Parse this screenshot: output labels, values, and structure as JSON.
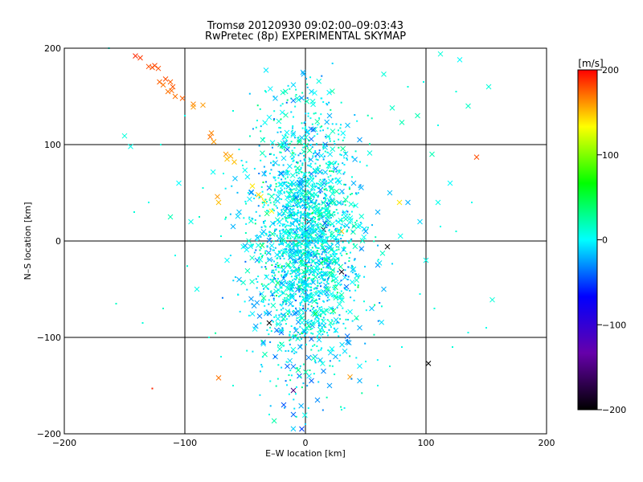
{
  "chart_data": {
    "type": "scatter",
    "title": "Tromsø 20120930 09:02:00–09:03:43",
    "subtitle": "RwPretec (8p) EXPERIMENTAL SKYMAP",
    "xlabel": "E–W location [km]",
    "ylabel": "N–S location [km]",
    "xlim": [
      -200,
      200
    ],
    "ylim": [
      -200,
      200
    ],
    "x_ticks": [
      -200,
      -100,
      0,
      100,
      200
    ],
    "y_ticks": [
      -200,
      -100,
      0,
      100,
      200
    ],
    "x_tick_labels": [
      "−200",
      "−100",
      "0",
      "100",
      "200"
    ],
    "y_tick_labels": [
      "−200",
      "−100",
      "0",
      "100",
      "200"
    ],
    "grid": true,
    "marker_types": [
      "cross",
      "dot"
    ],
    "colorbar": {
      "label": "[m/s]",
      "range": [
        -200,
        200
      ],
      "ticks": [
        200,
        100,
        0,
        -100,
        -200
      ],
      "tick_labels": [
        "200",
        "100",
        "0",
        "−100",
        "−200"
      ],
      "colors": [
        "#000000",
        "#6600aa",
        "#0000ff",
        "#00ffff",
        "#00ff00",
        "#ffff00",
        "#ff0000"
      ],
      "position": "right"
    },
    "series": [
      {
        "marker": "cross",
        "points": [
          [
            -141,
            192,
            190
          ],
          [
            -137,
            190,
            185
          ],
          [
            -130,
            181,
            180
          ],
          [
            -127,
            180,
            178
          ],
          [
            -125,
            182,
            182
          ],
          [
            -122,
            179,
            180
          ],
          [
            -121,
            165,
            175
          ],
          [
            -118,
            162,
            170
          ],
          [
            -116,
            168,
            180
          ],
          [
            -112,
            165,
            175
          ],
          [
            -114,
            155,
            170
          ],
          [
            -110,
            160,
            178
          ],
          [
            -111,
            156,
            172
          ],
          [
            -108,
            150,
            170
          ],
          [
            -102,
            148,
            175
          ],
          [
            -93,
            142,
            165
          ],
          [
            -93,
            139,
            160
          ],
          [
            -78,
            112,
            165
          ],
          [
            -79,
            108,
            170
          ],
          [
            -76,
            103,
            160
          ],
          [
            -66,
            90,
            160
          ],
          [
            -62,
            88,
            155
          ],
          [
            -65,
            85,
            150
          ],
          [
            -59,
            82,
            150
          ],
          [
            -44,
            57,
            140
          ],
          [
            -39,
            48,
            145
          ],
          [
            -37,
            46,
            140
          ],
          [
            -34,
            41,
            140
          ],
          [
            -28,
            31,
            130
          ],
          [
            -73,
            46,
            160
          ],
          [
            -72,
            40,
            150
          ],
          [
            -85,
            141,
            160
          ],
          [
            -150,
            109,
            10
          ],
          [
            -145,
            98,
            5
          ],
          [
            -112,
            25,
            20
          ],
          [
            -72,
            -142,
            170
          ],
          [
            37,
            -141,
            160
          ],
          [
            30,
            10,
            150
          ],
          [
            78,
            40,
            140
          ],
          [
            142,
            87,
            180
          ],
          [
            105,
            90,
            20
          ],
          [
            112,
            194,
            10
          ],
          [
            128,
            188,
            0
          ],
          [
            152,
            160,
            10
          ],
          [
            135,
            140,
            15
          ],
          [
            80,
            123,
            20
          ],
          [
            65,
            173,
            10
          ],
          [
            93,
            130,
            20
          ],
          [
            72,
            138,
            15
          ],
          [
            155,
            -61,
            10
          ],
          [
            45,
            -145,
            -20
          ],
          [
            102,
            -127,
            -200
          ],
          [
            68,
            -6,
            -200
          ],
          [
            30,
            -32,
            -190
          ],
          [
            -30,
            -85,
            -200
          ],
          [
            -10,
            -155,
            -150
          ],
          [
            15,
            12,
            -180
          ],
          [
            3,
            20,
            -190
          ],
          [
            -10,
            162,
            -10
          ],
          [
            -25,
            148,
            -15
          ],
          [
            -2,
            175,
            -20
          ],
          [
            5,
            155,
            -10
          ],
          [
            20,
            130,
            -20
          ],
          [
            35,
            120,
            -15
          ],
          [
            45,
            105,
            -25
          ],
          [
            -5,
            105,
            -30
          ],
          [
            -15,
            95,
            -40
          ],
          [
            10,
            90,
            -35
          ],
          [
            25,
            75,
            -30
          ],
          [
            40,
            60,
            -20
          ],
          [
            -20,
            70,
            -50
          ],
          [
            -30,
            55,
            -40
          ],
          [
            -45,
            50,
            -20
          ],
          [
            -55,
            30,
            -15
          ],
          [
            -60,
            15,
            -20
          ],
          [
            -50,
            -5,
            -25
          ],
          [
            -40,
            -20,
            -30
          ],
          [
            -55,
            -40,
            -20
          ],
          [
            -45,
            -60,
            -25
          ],
          [
            -30,
            -75,
            -30
          ],
          [
            -20,
            -95,
            -40
          ],
          [
            -35,
            -105,
            -35
          ],
          [
            -25,
            -120,
            -30
          ],
          [
            -15,
            -130,
            -40
          ],
          [
            -5,
            -140,
            -45
          ],
          [
            5,
            -145,
            -40
          ],
          [
            15,
            -135,
            -30
          ],
          [
            25,
            -120,
            -20
          ],
          [
            35,
            -105,
            -25
          ],
          [
            45,
            -90,
            -20
          ],
          [
            55,
            -70,
            -15
          ],
          [
            65,
            -50,
            -20
          ],
          [
            60,
            -25,
            -30
          ],
          [
            50,
            10,
            -25
          ],
          [
            60,
            30,
            -20
          ],
          [
            70,
            50,
            -15
          ],
          [
            85,
            40,
            -20
          ],
          [
            95,
            20,
            -10
          ],
          [
            -10,
            -180,
            -40
          ],
          [
            -3,
            -195,
            -50
          ],
          [
            -18,
            -170,
            -45
          ],
          [
            10,
            -165,
            -30
          ],
          [
            20,
            -150,
            -25
          ],
          [
            -65,
            -20,
            0
          ],
          [
            -90,
            -50,
            5
          ],
          [
            -95,
            20,
            5
          ],
          [
            -105,
            60,
            0
          ],
          [
            110,
            40,
            5
          ],
          [
            120,
            60,
            0
          ],
          [
            100,
            -20,
            5
          ]
        ]
      },
      {
        "marker": "dot",
        "points": [
          [
            -127,
            -153,
            190
          ],
          [
            -98,
            -26,
            10
          ],
          [
            -118,
            -70,
            15
          ],
          [
            -135,
            -85,
            10
          ],
          [
            -157,
            -65,
            15
          ],
          [
            -142,
            30,
            10
          ],
          [
            -130,
            40,
            5
          ],
          [
            -108,
            -15,
            5
          ],
          [
            -85,
            55,
            10
          ],
          [
            -88,
            25,
            15
          ],
          [
            -70,
            5,
            10
          ],
          [
            -68,
            70,
            5
          ],
          [
            -55,
            95,
            5
          ],
          [
            -40,
            125,
            5
          ],
          [
            -60,
            135,
            10
          ],
          [
            -163,
            200,
            5
          ],
          [
            -120,
            100,
            10
          ],
          [
            -100,
            130,
            5
          ],
          [
            135,
            -95,
            5
          ],
          [
            122,
            -110,
            10
          ],
          [
            150,
            -90,
            5
          ],
          [
            107,
            -70,
            10
          ],
          [
            112,
            15,
            5
          ],
          [
            125,
            10,
            10
          ],
          [
            95,
            -55,
            5
          ],
          [
            138,
            40,
            5
          ],
          [
            98,
            165,
            5
          ],
          [
            85,
            160,
            10
          ],
          [
            110,
            120,
            5
          ],
          [
            125,
            155,
            10
          ],
          [
            80,
            -110,
            5
          ],
          [
            70,
            -130,
            10
          ],
          [
            60,
            -150,
            5
          ],
          [
            -80,
            -100,
            10
          ],
          [
            -70,
            -120,
            5
          ],
          [
            -60,
            -150,
            10
          ],
          [
            0,
            -190,
            -10
          ],
          [
            -30,
            -180,
            5
          ],
          [
            30,
            -175,
            10
          ],
          [
            50,
            -125,
            5
          ]
        ]
      }
    ]
  }
}
